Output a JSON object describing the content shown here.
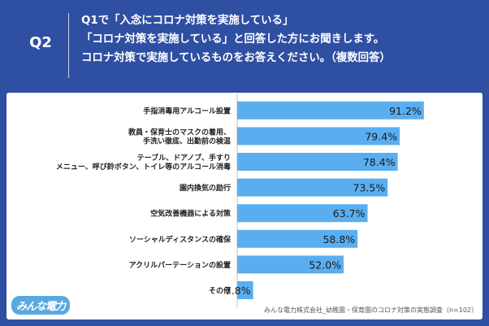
{
  "header": {
    "q_label": "Q2",
    "question_lines": [
      "Q1で「入念にコロナ対策を実施している」",
      "「コロナ対策を実施している」と回答した方にお聞きします。",
      "コロナ対策で実施しているものをお答えください。（複数回答）"
    ]
  },
  "chart_data": {
    "type": "bar",
    "orientation": "horizontal",
    "categories": [
      "手指消毒用アルコール設置",
      "教員・保育士のマスクの着用、\n手洗い徹底、出勤前の検温",
      "テーブル、ドアノブ、手すり\nメニュー、呼び鈴ボタン、トイレ等のアルコール消毒",
      "園内換気の励行",
      "空気改善機器による対策",
      "ソーシャルディスタンスの確保",
      "アクリルパーテーションの設置",
      "その他"
    ],
    "values": [
      91.2,
      79.4,
      78.4,
      73.5,
      63.7,
      58.8,
      52.0,
      7.8
    ],
    "value_labels": [
      "91.2%",
      "79.4%",
      "78.4%",
      "73.5%",
      "63.7%",
      "58.8%",
      "52.0%",
      "7.8%"
    ],
    "xlim": [
      0,
      100
    ],
    "bar_color": "#5aaef0",
    "grid": false
  },
  "footer": {
    "logo": "みんな電力",
    "source": "みんな電力株式会社_幼稚園・保育園のコロナ対策の実態調査（n=102）"
  }
}
